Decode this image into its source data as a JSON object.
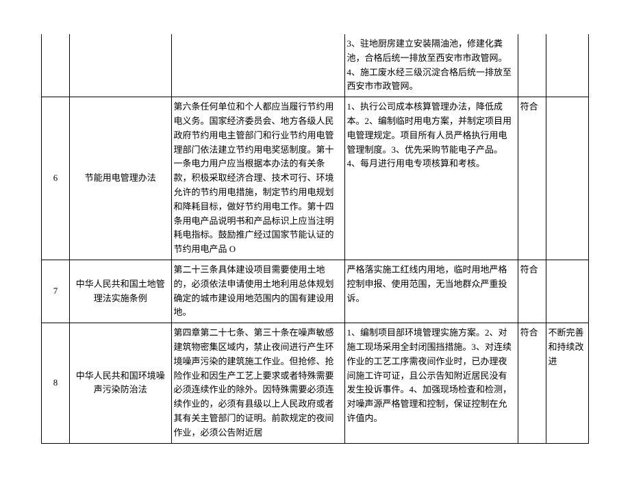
{
  "rows": [
    {
      "idx": "",
      "name": "",
      "law": "",
      "measure": "3、驻地厨房建立安装隔油池，修建化粪池，合格后统一排放至西安市市政管网。4、施工废水经三级沉淀合格后统一排放至西安市市政管网。",
      "status": "",
      "note": ""
    },
    {
      "idx": "6",
      "name": "节能用电管理办法",
      "law": "第六条任何单位和个人都应当履行节约用电义务。国家经济委员会、地方各级人民政府节约用电主管部门和行业节约用电管理部门依法建立节约用电奖惩制度。第十一条电力用户应当根据本办法的有关条款，积极采取经济合理、技术可行、环境允许的节约用电措施，制定节约用电规划和降耗目标，做好节约用电工作。第十四条用电产品说明书和产品标识上应当注明耗电指标。鼓励推广经过国家节能认证的节约用电产品 O",
      "measure": "1、执行公司成本核算管理办法，降低成本。2、编制临时用电方案，并制定项目用电管理规定。项目所有人员严格执行用电管理制度。3、优先采购节能电子产品。4、每月进行用电专项核算和考核。",
      "status": "符合",
      "note": ""
    },
    {
      "idx": "7",
      "name": "中华人民共和国土地管理法实施条例",
      "law": "第二十三条具体建设项目需要使用土地的，必须依法申请使用土地利用总体规划确定的城市建设用地范围内的国有建设用地。",
      "measure": "严格落实施工红线内用地，临时用地严格控制申报、使用范围，无当地群众严重投诉。",
      "status": "符合",
      "note": ""
    },
    {
      "idx": "8",
      "name": "中华人民共和国环境噪声污染防治法",
      "law": "第四章第二十七条、第三十条在噪声敏感建筑物密集区域内，禁止夜间进行产生环境噪声污染的建筑施工作业。但抢修、抢险作业和因生产工艺上要求或者特殊需要必须连续作业的除外。因特殊需要必须连续作业的，必须有县级以上人民政府或者其有关主管部门的证明。前款规定的夜间作业，必须公告附近居",
      "measure": "1、编制项目部环境管理实施方案。2、对施工现场采用全封闭围挡措施。3、对连续作业的工艺工序需夜间作业时，已办理夜间施工许可证，且公示告知附近居民没有发生投诉事件。4、加强现场检查和检测，对噪声源严格管理和控制，保证控制在允许值内。",
      "status": "符合",
      "note": "不断完善和持续改进"
    }
  ]
}
